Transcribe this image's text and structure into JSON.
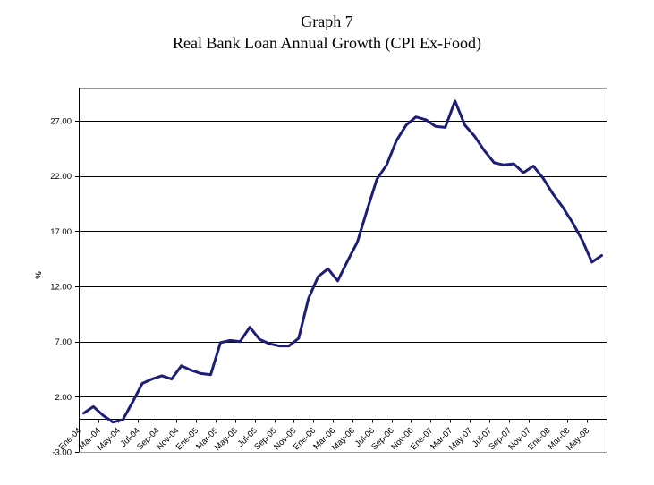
{
  "page": {
    "background": "#ffffff"
  },
  "header": {
    "title_line1": "Graph 7",
    "title_line2": "Real Bank Loan Annual Growth (CPI Ex-Food)"
  },
  "chart_data": {
    "type": "line",
    "title": "Graph 7",
    "subtitle": "Real Bank Loan Annual Growth (CPI Ex-Food)",
    "xlabel": "",
    "ylabel": "%",
    "ylim": [
      -3,
      30
    ],
    "ytick_interval": 5,
    "ytick_values": [
      -3,
      2,
      7,
      12,
      17,
      22,
      27
    ],
    "ytick_labels": [
      "-3.00",
      "2.00",
      "7.00",
      "12.00",
      "17.00",
      "22.00",
      "27.00"
    ],
    "grid": true,
    "legend_position": "none",
    "x_axis_crosses_at": 0,
    "x_label_every_n_categories": 2,
    "x_tick_labels": [
      "Ene-04",
      "Mar-04",
      "May-04",
      "Jul-04",
      "Sep-04",
      "Nov-04",
      "Ene-05",
      "Mar-05",
      "May-05",
      "Jul-05",
      "Sep-05",
      "Nov-05",
      "Ene-06",
      "Mar-06",
      "May-06",
      "Jul-06",
      "Sep-06",
      "Nov-06",
      "Ene-07",
      "Mar-07",
      "May-07",
      "Jul-07",
      "Sep-07",
      "Nov-07",
      "Ene-08",
      "Mar-08",
      "May-08"
    ],
    "categories": [
      "Ene-04",
      "Feb-04",
      "Mar-04",
      "Abr-04",
      "May-04",
      "Jun-04",
      "Jul-04",
      "Ago-04",
      "Sep-04",
      "Oct-04",
      "Nov-04",
      "Dic-04",
      "Ene-05",
      "Feb-05",
      "Mar-05",
      "Abr-05",
      "May-05",
      "Jun-05",
      "Jul-05",
      "Ago-05",
      "Sep-05",
      "Oct-05",
      "Nov-05",
      "Dic-05",
      "Ene-06",
      "Feb-06",
      "Mar-06",
      "Abr-06",
      "May-06",
      "Jun-06",
      "Jul-06",
      "Ago-06",
      "Sep-06",
      "Oct-06",
      "Nov-06",
      "Dic-06",
      "Ene-07",
      "Feb-07",
      "Mar-07",
      "Abr-07",
      "May-07",
      "Jun-07",
      "Jul-07",
      "Ago-07",
      "Sep-07",
      "Oct-07",
      "Nov-07",
      "Dic-07",
      "Ene-08",
      "Feb-08",
      "Mar-08",
      "Abr-08",
      "May-08",
      "Jun-08"
    ],
    "series": [
      {
        "name": "Real bank loan annual growth",
        "values": [
          0.5,
          1.1,
          0.3,
          -0.3,
          -0.1,
          1.5,
          3.2,
          3.6,
          3.9,
          3.6,
          4.8,
          4.4,
          4.1,
          4.0,
          6.9,
          7.1,
          7.0,
          8.3,
          7.2,
          6.8,
          6.6,
          6.6,
          7.3,
          10.9,
          12.9,
          13.6,
          12.5,
          14.3,
          16.0,
          18.9,
          21.7,
          23.0,
          25.2,
          26.6,
          27.35,
          27.1,
          26.5,
          26.4,
          28.8,
          26.6,
          25.6,
          24.3,
          23.2,
          23.0,
          23.1,
          22.3,
          22.9,
          21.8,
          20.4,
          19.2,
          17.8,
          16.2,
          14.2,
          14.8
        ]
      }
    ],
    "colors": {
      "line": "#1e1e78",
      "gridline": "#000000",
      "plot_border": "#9a9a9a",
      "axis": "#000000",
      "text": "#000000",
      "background": "#ffffff"
    }
  }
}
